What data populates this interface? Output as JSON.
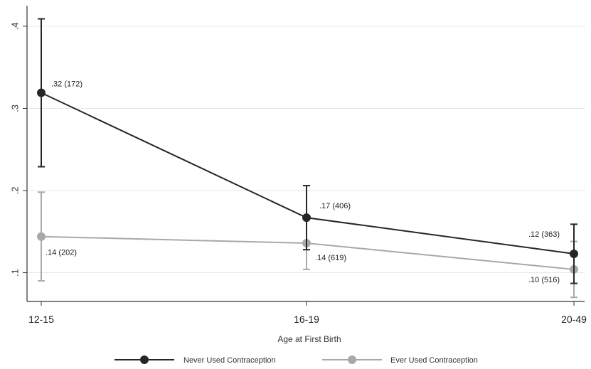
{
  "chart_data": {
    "type": "line",
    "title": "",
    "xlabel": "Age at First Birth",
    "ylabel": "",
    "categories": [
      "12-15",
      "16-19",
      "20-49"
    ],
    "yticks": [
      ".1",
      ".2",
      ".3",
      ".4"
    ],
    "ytick_values": [
      0.1,
      0.2,
      0.3,
      0.4
    ],
    "ylim": [
      0.065,
      0.425
    ],
    "grid": true,
    "legend_position": "bottom",
    "series": [
      {
        "name": "Never Used Contraception",
        "color": "#262626",
        "values": [
          0.319,
          0.167,
          0.123
        ],
        "ci_low": [
          0.229,
          0.128,
          0.087
        ],
        "ci_high": [
          0.409,
          0.206,
          0.159
        ],
        "labels": [
          ".32 (172)",
          ".17 (406)",
          ".12 (363)"
        ]
      },
      {
        "name": "Ever Used Contraception",
        "color": "#a8a8a8",
        "values": [
          0.144,
          0.136,
          0.104
        ],
        "ci_low": [
          0.09,
          0.104,
          0.07
        ],
        "ci_high": [
          0.198,
          0.168,
          0.138
        ],
        "labels": [
          ".14 (202)",
          ".14 (619)",
          ".10 (516)"
        ]
      }
    ]
  }
}
